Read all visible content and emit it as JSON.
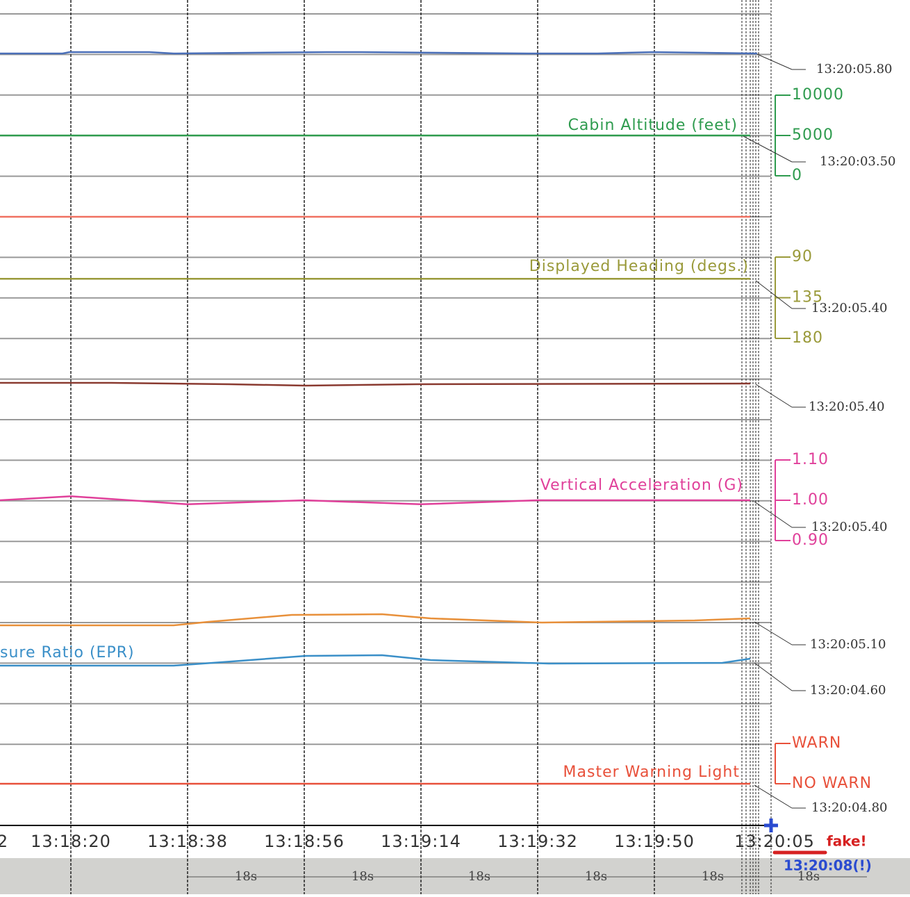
{
  "chart_data": {
    "type": "line",
    "time_axis": {
      "labels": [
        "2",
        "13:18:20",
        "13:18:38",
        "13:18:56",
        "13:19:14",
        "13:19:32",
        "13:19:50",
        "13:20:05"
      ],
      "note": "fake!",
      "actual": "13:20:08(!)",
      "interval_labels": [
        "18s",
        "18s",
        "18s",
        "18s",
        "18s",
        "18s"
      ]
    },
    "series": [
      {
        "name": "Cabin Altitude (feet)",
        "color": "#2e9b4e",
        "values": [
          5000,
          5000,
          5000,
          5000,
          5000,
          5000,
          5000,
          5000
        ],
        "ylim": [
          0,
          10000
        ],
        "yticks": [
          10000,
          5000,
          0
        ]
      },
      {
        "name": "Displayed Heading (degs.)",
        "color": "#9a9a3a",
        "values": [
          114,
          114,
          114,
          114,
          114,
          114,
          114,
          114
        ],
        "ylim": [
          180,
          90
        ],
        "yticks": [
          90,
          135,
          180
        ]
      },
      {
        "name": "Vertical Acceleration (G)",
        "color": "#e0409a",
        "values": [
          1.0,
          1.01,
          0.99,
          1.0,
          0.99,
          1.0,
          1.0,
          1.0
        ],
        "ylim": [
          0.9,
          1.1
        ],
        "yticks": [
          {
            "value": 1.1,
            "label": "1.10"
          },
          {
            "value": 1.0,
            "label": "1.00"
          },
          {
            "value": 0.9,
            "label": "0.90"
          }
        ]
      },
      {
        "name": "Master Warning Light",
        "color": "#e8503a",
        "values": [
          0,
          0,
          0,
          0,
          0,
          0,
          0,
          0
        ],
        "ylim": [
          0,
          1
        ],
        "yticks": [
          {
            "value": 1,
            "label": "WARN"
          },
          {
            "value": 0,
            "label": "NO WARN"
          }
        ]
      }
    ],
    "partial_label": "sure Ratio (EPR)",
    "callouts": [
      "13:20:05.80",
      "13:20:03.50",
      "13:20:05.40",
      "13:20:05.40",
      "13:20:05.40",
      "13:20:05.10",
      "13:20:04.60",
      "13:20:04.80"
    ]
  }
}
